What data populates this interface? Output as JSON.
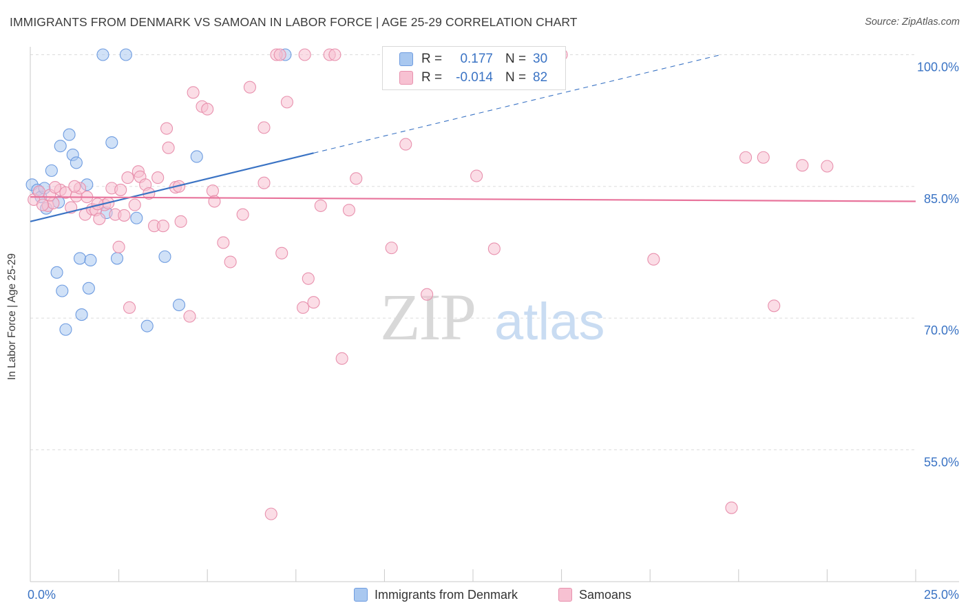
{
  "header": {
    "title": "IMMIGRANTS FROM DENMARK VS SAMOAN IN LABOR FORCE | AGE 25-29 CORRELATION CHART",
    "source": "Source: ZipAtlas.com"
  },
  "watermark": {
    "zip": "ZIP",
    "atlas": "atlas"
  },
  "legend": {
    "rows": [
      {
        "r_label": "R =",
        "r_value": "0.177",
        "n_label": "N =",
        "n_value": "30",
        "color": "#a9c8f0",
        "border": "#6d9be0"
      },
      {
        "r_label": "R =",
        "r_value": "-0.014",
        "n_label": "N =",
        "n_value": "82",
        "color": "#f7c1d2",
        "border": "#e890ad"
      }
    ]
  },
  "bottom_legend": [
    {
      "label": "Immigrants from Denmark",
      "color": "#a9c8f0",
      "border": "#6d9be0"
    },
    {
      "label": "Samoans",
      "color": "#f7c1d2",
      "border": "#e890ad"
    }
  ],
  "chart_data": {
    "type": "scatter",
    "title": "IMMIGRANTS FROM DENMARK VS SAMOAN IN LABOR FORCE | AGE 25-29 CORRELATION CHART",
    "xlabel": "",
    "ylabel": "In Labor Force | Age 25-29",
    "xlim": [
      0,
      25
    ],
    "ylim": [
      40,
      102
    ],
    "x_tick_labels": [
      {
        "value": 0,
        "label": "0.0%"
      },
      {
        "value": 25,
        "label": "25.0%"
      }
    ],
    "y_tick_labels": [
      {
        "value": 100,
        "label": "100.0%"
      },
      {
        "value": 85,
        "label": "85.0%"
      },
      {
        "value": 70,
        "label": "70.0%"
      },
      {
        "value": 55,
        "label": "55.0%"
      }
    ],
    "grid": true,
    "legend_position": "top-center",
    "series": [
      {
        "name": "Immigrants from Denmark",
        "color": "#6d9be0",
        "fill": "#a9c8f0",
        "trend": {
          "x": [
            0,
            8.0
          ],
          "y": [
            81.0,
            88.8
          ],
          "dashed_extension": {
            "x": [
              8.0,
              19.5
            ],
            "y": [
              88.8,
              100.0
            ]
          },
          "color": "#3a73c4"
        },
        "points": [
          [
            0.05,
            85.2
          ],
          [
            0.2,
            84.6
          ],
          [
            0.3,
            83.8
          ],
          [
            0.45,
            82.5
          ],
          [
            0.6,
            86.8
          ],
          [
            0.8,
            83.2
          ],
          [
            0.4,
            84.8
          ],
          [
            0.85,
            89.6
          ],
          [
            1.1,
            90.9
          ],
          [
            1.2,
            88.6
          ],
          [
            1.3,
            87.7
          ],
          [
            1.6,
            85.2
          ],
          [
            2.05,
            100.0
          ],
          [
            2.7,
            100.0
          ],
          [
            2.3,
            90.0
          ],
          [
            0.75,
            75.2
          ],
          [
            0.9,
            73.1
          ],
          [
            1.4,
            76.8
          ],
          [
            1.7,
            76.6
          ],
          [
            1.45,
            70.4
          ],
          [
            1.65,
            73.4
          ],
          [
            2.45,
            76.8
          ],
          [
            1.0,
            68.7
          ],
          [
            3.0,
            81.4
          ],
          [
            3.3,
            69.1
          ],
          [
            3.8,
            77.0
          ],
          [
            4.2,
            71.5
          ],
          [
            4.7,
            88.4
          ],
          [
            7.2,
            100.0
          ],
          [
            2.15,
            82.0
          ]
        ]
      },
      {
        "name": "Samoans",
        "color": "#e890ad",
        "fill": "#f7c1d2",
        "trend": {
          "x": [
            0,
            25
          ],
          "y": [
            83.8,
            83.3
          ],
          "color": "#e8739b"
        },
        "points": [
          [
            0.1,
            83.5
          ],
          [
            0.25,
            84.4
          ],
          [
            0.5,
            82.8
          ],
          [
            0.65,
            83.1
          ],
          [
            0.85,
            84.6
          ],
          [
            1.0,
            84.3
          ],
          [
            1.15,
            82.6
          ],
          [
            1.3,
            83.9
          ],
          [
            1.4,
            84.8
          ],
          [
            1.55,
            81.8
          ],
          [
            1.6,
            83.8
          ],
          [
            1.75,
            82.4
          ],
          [
            1.85,
            82.3
          ],
          [
            1.95,
            81.3
          ],
          [
            2.1,
            82.9
          ],
          [
            2.2,
            83.1
          ],
          [
            2.3,
            84.8
          ],
          [
            2.4,
            81.8
          ],
          [
            2.5,
            78.1
          ],
          [
            2.65,
            81.7
          ],
          [
            2.75,
            86.0
          ],
          [
            2.8,
            71.2
          ],
          [
            2.95,
            82.9
          ],
          [
            3.05,
            86.7
          ],
          [
            3.1,
            86.1
          ],
          [
            3.25,
            85.2
          ],
          [
            3.35,
            84.2
          ],
          [
            3.5,
            80.5
          ],
          [
            3.6,
            86.0
          ],
          [
            3.75,
            80.5
          ],
          [
            3.85,
            91.6
          ],
          [
            3.9,
            89.4
          ],
          [
            4.1,
            84.9
          ],
          [
            4.2,
            85.0
          ],
          [
            4.25,
            81.0
          ],
          [
            4.5,
            70.2
          ],
          [
            4.6,
            95.7
          ],
          [
            4.85,
            94.1
          ],
          [
            5.0,
            93.8
          ],
          [
            5.15,
            84.5
          ],
          [
            5.2,
            83.3
          ],
          [
            5.45,
            78.6
          ],
          [
            5.65,
            76.4
          ],
          [
            6.0,
            81.8
          ],
          [
            6.2,
            96.3
          ],
          [
            6.6,
            91.7
          ],
          [
            6.6,
            85.4
          ],
          [
            6.95,
            100.0
          ],
          [
            7.05,
            100.0
          ],
          [
            7.1,
            77.4
          ],
          [
            7.25,
            94.6
          ],
          [
            7.75,
            100.0
          ],
          [
            7.7,
            71.2
          ],
          [
            7.85,
            74.5
          ],
          [
            8.0,
            71.8
          ],
          [
            8.2,
            82.8
          ],
          [
            8.45,
            100.0
          ],
          [
            8.6,
            100.0
          ],
          [
            8.8,
            65.4
          ],
          [
            9.0,
            82.3
          ],
          [
            9.2,
            85.9
          ],
          [
            10.2,
            78.0
          ],
          [
            10.6,
            89.8
          ],
          [
            11.2,
            72.7
          ],
          [
            12.6,
            86.2
          ],
          [
            13.1,
            77.9
          ],
          [
            14.3,
            100.0
          ],
          [
            15.0,
            100.0
          ],
          [
            17.6,
            76.7
          ],
          [
            19.8,
            48.4
          ],
          [
            20.2,
            88.3
          ],
          [
            20.7,
            88.3
          ],
          [
            21.0,
            71.4
          ],
          [
            21.8,
            87.4
          ],
          [
            22.5,
            87.3
          ],
          [
            6.8,
            47.7
          ],
          [
            1.9,
            83.0
          ],
          [
            2.55,
            84.6
          ],
          [
            0.55,
            84.0
          ],
          [
            0.35,
            82.9
          ],
          [
            0.7,
            84.9
          ],
          [
            1.25,
            85.0
          ]
        ]
      }
    ]
  }
}
